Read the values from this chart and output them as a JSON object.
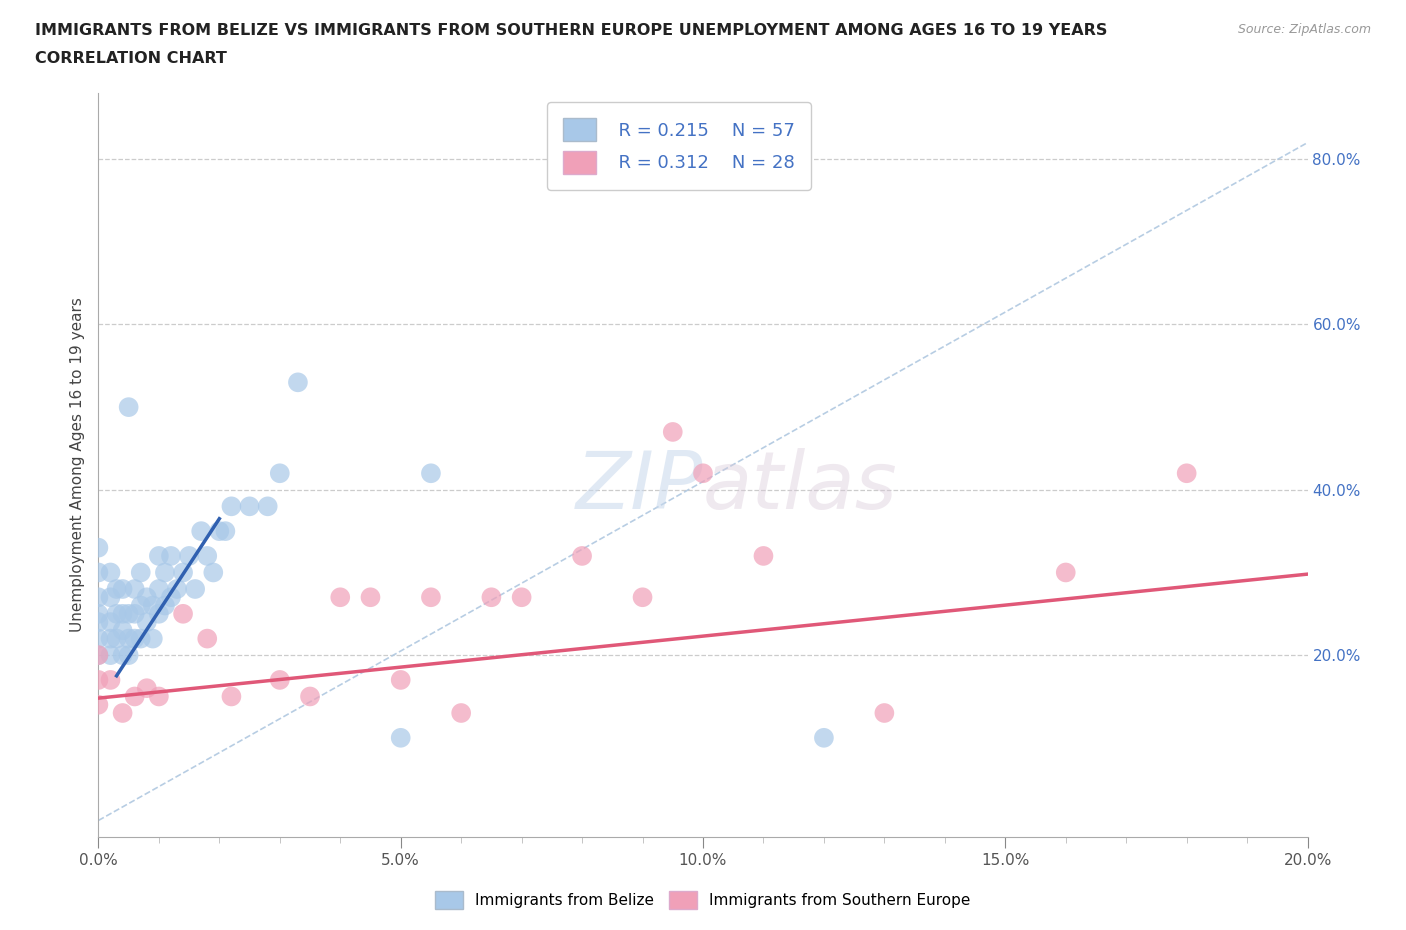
{
  "title_line1": "IMMIGRANTS FROM BELIZE VS IMMIGRANTS FROM SOUTHERN EUROPE UNEMPLOYMENT AMONG AGES 16 TO 19 YEARS",
  "title_line2": "CORRELATION CHART",
  "source_text": "Source: ZipAtlas.com",
  "ylabel": "Unemployment Among Ages 16 to 19 years",
  "xlim": [
    0.0,
    0.2
  ],
  "ylim": [
    -0.02,
    0.88
  ],
  "xtick_labels": [
    "0.0%",
    "",
    "",
    "",
    "",
    "5.0%",
    "",
    "",
    "",
    "",
    "10.0%",
    "",
    "",
    "",
    "",
    "15.0%",
    "",
    "",
    "",
    "",
    "20.0%"
  ],
  "xtick_vals": [
    0.0,
    0.01,
    0.02,
    0.03,
    0.04,
    0.05,
    0.06,
    0.07,
    0.08,
    0.09,
    0.1,
    0.11,
    0.12,
    0.13,
    0.14,
    0.15,
    0.16,
    0.17,
    0.18,
    0.19,
    0.2
  ],
  "ytick_vals_right": [
    0.2,
    0.4,
    0.6,
    0.8
  ],
  "ytick_labels_right": [
    "20.0%",
    "40.0%",
    "60.0%",
    "80.0%"
  ],
  "legend_r1": "R = 0.215",
  "legend_n1": "N = 57",
  "legend_r2": "R = 0.312",
  "legend_n2": "N = 28",
  "color_blue": "#a8c8e8",
  "color_pink": "#f0a0b8",
  "line_blue": "#3060b0",
  "line_pink": "#e05878",
  "line_dashed_color": "#b0c8e0",
  "watermark_color": "#dde8f5",
  "belize_x": [
    0.0,
    0.0,
    0.0,
    0.0,
    0.0,
    0.0,
    0.0,
    0.002,
    0.002,
    0.002,
    0.002,
    0.002,
    0.003,
    0.003,
    0.003,
    0.004,
    0.004,
    0.004,
    0.004,
    0.005,
    0.005,
    0.005,
    0.005,
    0.006,
    0.006,
    0.006,
    0.007,
    0.007,
    0.007,
    0.008,
    0.008,
    0.009,
    0.009,
    0.01,
    0.01,
    0.01,
    0.011,
    0.011,
    0.012,
    0.012,
    0.013,
    0.014,
    0.015,
    0.016,
    0.017,
    0.018,
    0.019,
    0.02,
    0.021,
    0.022,
    0.025,
    0.028,
    0.03,
    0.033,
    0.05,
    0.055,
    0.12
  ],
  "belize_y": [
    0.2,
    0.22,
    0.24,
    0.25,
    0.27,
    0.3,
    0.33,
    0.2,
    0.22,
    0.24,
    0.27,
    0.3,
    0.22,
    0.25,
    0.28,
    0.2,
    0.23,
    0.25,
    0.28,
    0.2,
    0.22,
    0.25,
    0.5,
    0.22,
    0.25,
    0.28,
    0.22,
    0.26,
    0.3,
    0.24,
    0.27,
    0.22,
    0.26,
    0.25,
    0.28,
    0.32,
    0.26,
    0.3,
    0.27,
    0.32,
    0.28,
    0.3,
    0.32,
    0.28,
    0.35,
    0.32,
    0.3,
    0.35,
    0.35,
    0.38,
    0.38,
    0.38,
    0.42,
    0.53,
    0.1,
    0.42,
    0.1
  ],
  "s_europe_x": [
    0.0,
    0.0,
    0.0,
    0.002,
    0.004,
    0.006,
    0.008,
    0.01,
    0.014,
    0.018,
    0.022,
    0.03,
    0.035,
    0.04,
    0.045,
    0.05,
    0.055,
    0.06,
    0.065,
    0.07,
    0.08,
    0.09,
    0.095,
    0.1,
    0.11,
    0.13,
    0.16,
    0.18
  ],
  "s_europe_y": [
    0.14,
    0.17,
    0.2,
    0.17,
    0.13,
    0.15,
    0.16,
    0.15,
    0.25,
    0.22,
    0.15,
    0.17,
    0.15,
    0.27,
    0.27,
    0.17,
    0.27,
    0.13,
    0.27,
    0.27,
    0.32,
    0.27,
    0.47,
    0.42,
    0.32,
    0.13,
    0.3,
    0.42
  ],
  "belize_line_x": [
    0.003,
    0.02
  ],
  "belize_line_y": [
    0.175,
    0.365
  ],
  "se_line_x": [
    0.0,
    0.2
  ],
  "se_line_y": [
    0.148,
    0.298
  ],
  "diag_line_x": [
    0.0,
    0.2
  ],
  "diag_line_y": [
    0.0,
    0.82
  ]
}
